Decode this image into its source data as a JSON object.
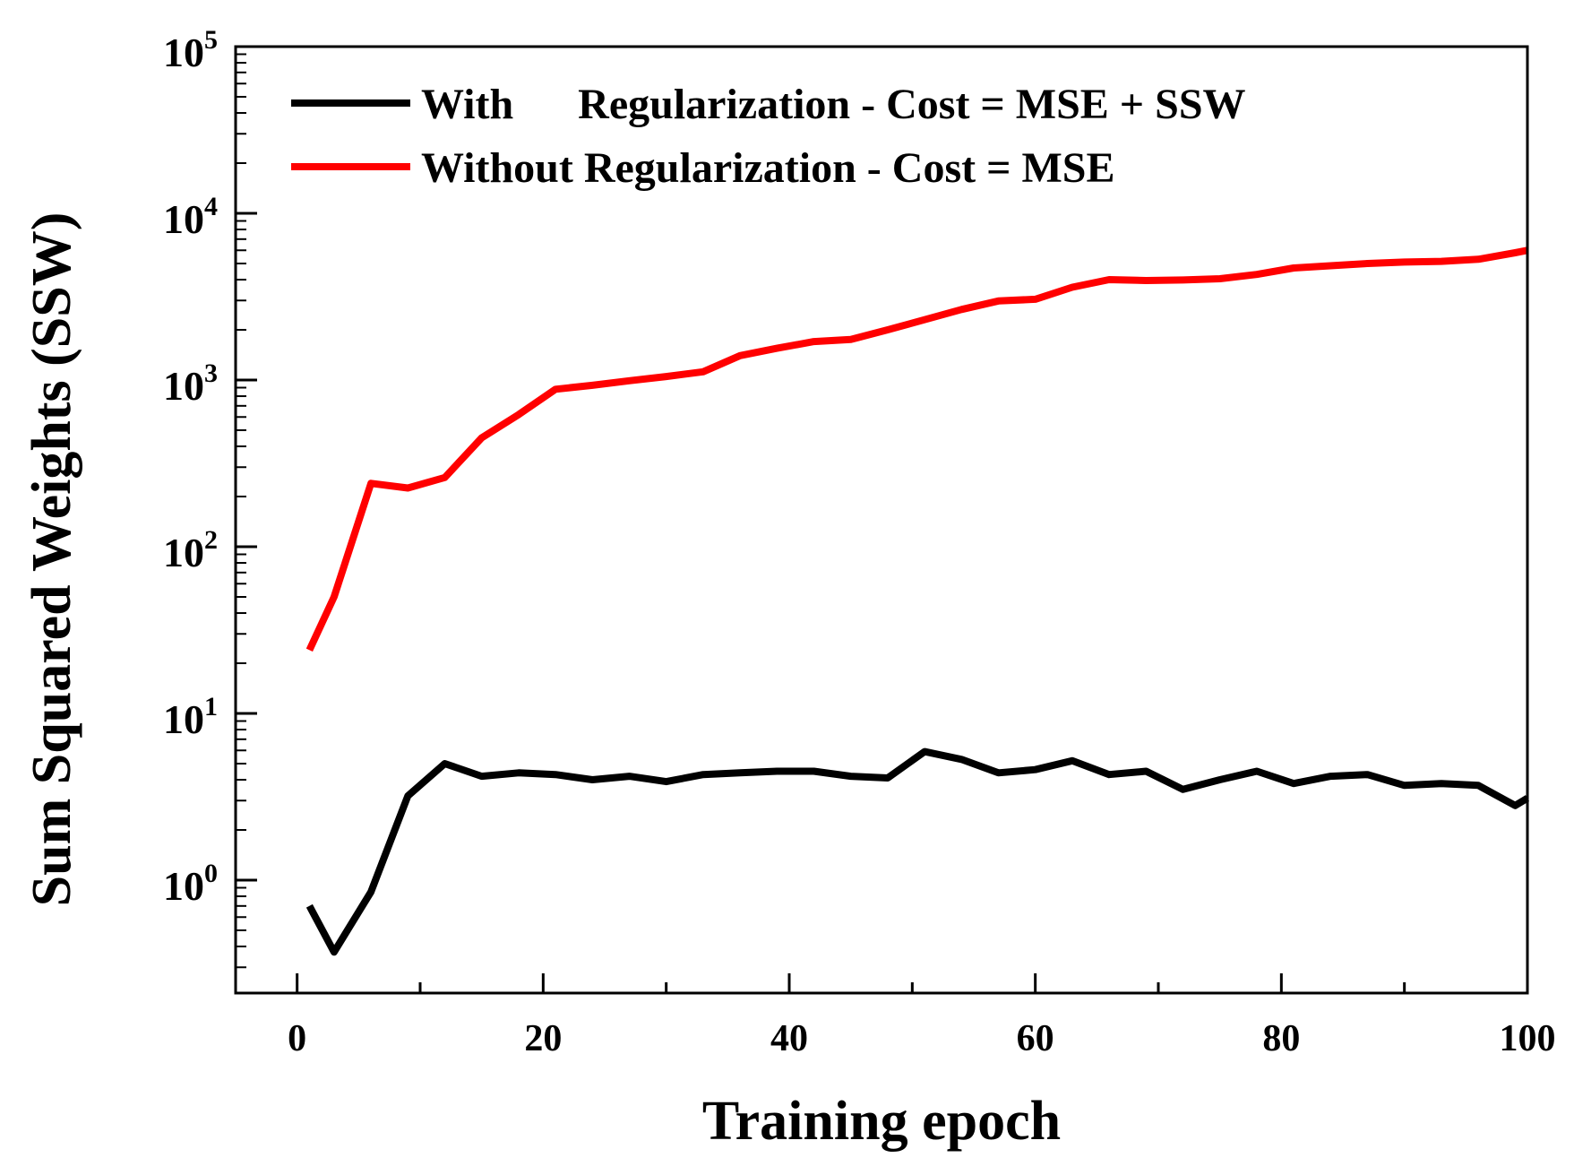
{
  "chart_data": {
    "type": "line",
    "title": "",
    "xlabel": "Training epoch",
    "ylabel": "Sum Squared Weights (SSW)",
    "xlim": [
      -5,
      100
    ],
    "ylim": [
      0.2,
      100000
    ],
    "yscale": "log",
    "x_ticks": [
      0,
      20,
      40,
      60,
      80,
      100
    ],
    "x_tick_labels": [
      "0",
      "20",
      "40",
      "60",
      "80",
      "100"
    ],
    "y_ticks": [
      1,
      10,
      100,
      1000,
      10000,
      100000
    ],
    "y_tick_labels": [
      {
        "base": "10",
        "exp": "0"
      },
      {
        "base": "10",
        "exp": "1"
      },
      {
        "base": "10",
        "exp": "2"
      },
      {
        "base": "10",
        "exp": "3"
      },
      {
        "base": "10",
        "exp": "4"
      },
      {
        "base": "10",
        "exp": "5"
      }
    ],
    "grid": false,
    "legend_position": "top-left",
    "series": [
      {
        "name": "With      Regularization - Cost = MSE + SSW",
        "color": "#000000",
        "x": [
          1,
          3,
          6,
          9,
          12,
          15,
          18,
          21,
          24,
          27,
          30,
          33,
          36,
          39,
          42,
          45,
          48,
          51,
          54,
          57,
          60,
          63,
          66,
          69,
          72,
          75,
          78,
          81,
          84,
          87,
          90,
          93,
          96,
          99,
          100
        ],
        "values": [
          0.7,
          0.37,
          0.85,
          3.2,
          5.0,
          4.2,
          4.4,
          4.3,
          4.0,
          4.2,
          3.9,
          4.3,
          4.4,
          4.5,
          4.5,
          4.2,
          4.1,
          5.9,
          5.3,
          4.4,
          4.6,
          5.2,
          4.3,
          4.5,
          3.5,
          4.0,
          4.5,
          3.8,
          4.2,
          4.3,
          3.7,
          3.8,
          3.7,
          2.8,
          3.1
        ]
      },
      {
        "name": "Without Regularization - Cost = MSE",
        "color": "#ff0000",
        "x": [
          1,
          3,
          6,
          9,
          12,
          15,
          18,
          21,
          24,
          27,
          30,
          33,
          36,
          39,
          42,
          45,
          48,
          51,
          54,
          57,
          60,
          63,
          66,
          69,
          72,
          75,
          78,
          81,
          84,
          87,
          90,
          93,
          96,
          99,
          100
        ],
        "values": [
          24,
          50,
          240,
          225,
          260,
          450,
          620,
          880,
          930,
          990,
          1050,
          1120,
          1400,
          1550,
          1700,
          1750,
          2000,
          2300,
          2650,
          2980,
          3050,
          3600,
          4000,
          3950,
          3980,
          4050,
          4300,
          4700,
          4850,
          5000,
          5100,
          5150,
          5300,
          5800,
          6000
        ]
      }
    ]
  }
}
